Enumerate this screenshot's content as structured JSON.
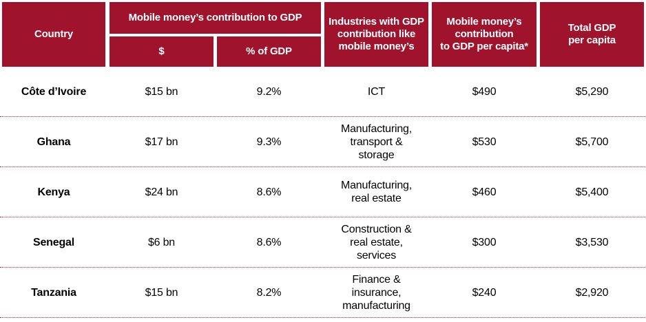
{
  "colors": {
    "header_bg": "#A0132C",
    "header_text": "#FFFFFF",
    "divider": "#B52A3E"
  },
  "header": {
    "country": "Country",
    "mm_contribution": "Mobile money’s contribution to GDP",
    "dollars": "$",
    "pct_gdp": "% of GDP",
    "industries": "Industries with GDP\ncontribution like\nmobile money’s",
    "per_capita_contribution": "Mobile money’s\ncontribution\nto GDP per capita*",
    "total_gdp_per_capita": "Total GDP\nper capita"
  },
  "rows": [
    {
      "country": "Côte d’Ivoire",
      "dollars": "$15 bn",
      "pct": "9.2%",
      "industries": "ICT",
      "per_capita": "$490",
      "total": "$5,290"
    },
    {
      "country": "Ghana",
      "dollars": "$17 bn",
      "pct": "9.3%",
      "industries": "Manufacturing,\ntransport &\nstorage",
      "per_capita": "$530",
      "total": "$5,700"
    },
    {
      "country": "Kenya",
      "dollars": "$24 bn",
      "pct": "8.6%",
      "industries": "Manufacturing,\nreal estate",
      "per_capita": "$460",
      "total": "$5,400"
    },
    {
      "country": "Senegal",
      "dollars": "$6 bn",
      "pct": "8.6%",
      "industries": "Construction &\nreal estate,\nservices",
      "per_capita": "$300",
      "total": "$3,530"
    },
    {
      "country": "Tanzania",
      "dollars": "$15 bn",
      "pct": "8.2%",
      "industries": "Finance &\ninsurance,\nmanufacturing",
      "per_capita": "$240",
      "total": "$2,920"
    }
  ]
}
